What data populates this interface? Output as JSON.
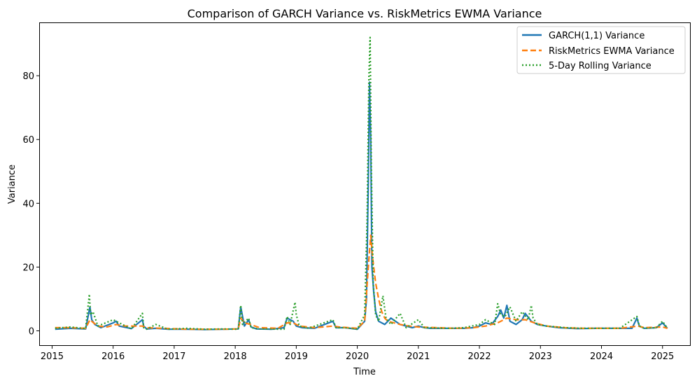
{
  "chart_data": {
    "type": "line",
    "title": "Comparison of GARCH Variance vs. RiskMetrics EWMA Variance",
    "xlabel": "Time",
    "ylabel": "Variance",
    "xlim": [
      2014.8,
      2025.45
    ],
    "ylim": [
      -4.5,
      96.5
    ],
    "x_ticks": [
      2015,
      2016,
      2017,
      2018,
      2019,
      2020,
      2021,
      2022,
      2023,
      2024,
      2025
    ],
    "y_ticks": [
      0,
      20,
      40,
      60,
      80
    ],
    "grid": false,
    "legend_position": "top-right",
    "series": [
      {
        "name": "GARCH(1,1) Variance",
        "color": "#1f77b4",
        "style": "solid",
        "x": [
          2015.05,
          2015.3,
          2015.55,
          2015.62,
          2015.65,
          2015.7,
          2015.8,
          2016.0,
          2016.05,
          2016.1,
          2016.3,
          2016.48,
          2016.5,
          2016.55,
          2016.7,
          2016.9,
          2017.2,
          2017.5,
          2017.8,
          2018.05,
          2018.09,
          2018.15,
          2018.22,
          2018.26,
          2018.35,
          2018.6,
          2018.8,
          2018.85,
          2018.95,
          2019.0,
          2019.1,
          2019.3,
          2019.6,
          2019.65,
          2019.8,
          2020.0,
          2020.12,
          2020.15,
          2020.18,
          2020.2,
          2020.22,
          2020.24,
          2020.27,
          2020.3,
          2020.35,
          2020.45,
          2020.55,
          2020.7,
          2020.8,
          2020.9,
          2021.0,
          2021.1,
          2021.2,
          2021.5,
          2021.75,
          2021.9,
          2022.0,
          2022.1,
          2022.2,
          2022.3,
          2022.35,
          2022.4,
          2022.45,
          2022.5,
          2022.6,
          2022.7,
          2022.75,
          2022.85,
          2022.95,
          2023.1,
          2023.3,
          2023.6,
          2023.9,
          2024.2,
          2024.5,
          2024.58,
          2024.62,
          2024.7,
          2024.9,
          2025.0,
          2025.08
        ],
        "y": [
          0.5,
          0.8,
          0.6,
          7.5,
          3.5,
          2.0,
          1.0,
          2.5,
          3.0,
          1.5,
          0.7,
          3.5,
          1.5,
          0.6,
          0.8,
          0.5,
          0.5,
          0.4,
          0.5,
          0.6,
          7.5,
          1.5,
          3.5,
          1.2,
          0.6,
          0.5,
          1.0,
          4.0,
          3.0,
          1.5,
          1.0,
          0.8,
          3.0,
          1.0,
          1.0,
          0.5,
          3.0,
          10.0,
          47.0,
          78.0,
          60.0,
          20.0,
          12.0,
          6.0,
          3.0,
          2.0,
          4.0,
          2.0,
          1.5,
          1.0,
          1.5,
          1.0,
          0.8,
          0.8,
          0.8,
          1.0,
          1.5,
          2.5,
          2.0,
          4.5,
          6.5,
          4.0,
          8.0,
          3.0,
          2.0,
          3.5,
          5.5,
          3.0,
          2.0,
          1.5,
          1.0,
          0.7,
          0.8,
          0.8,
          0.8,
          4.0,
          1.5,
          0.8,
          1.0,
          2.5,
          0.8
        ]
      },
      {
        "name": "RiskMetrics EWMA Variance",
        "color": "#ff7f0e",
        "style": "dashed",
        "x": [
          2015.05,
          2015.3,
          2015.55,
          2015.62,
          2015.68,
          2015.75,
          2015.9,
          2016.05,
          2016.2,
          2016.48,
          2016.55,
          2016.8,
          2017.2,
          2017.5,
          2017.8,
          2018.05,
          2018.09,
          2018.15,
          2018.25,
          2018.4,
          2018.7,
          2018.85,
          2018.95,
          2019.05,
          2019.3,
          2019.6,
          2019.7,
          2020.0,
          2020.12,
          2020.18,
          2020.22,
          2020.25,
          2020.3,
          2020.35,
          2020.4,
          2020.45,
          2020.5,
          2020.6,
          2020.7,
          2020.85,
          2021.0,
          2021.3,
          2021.6,
          2021.9,
          2022.1,
          2022.3,
          2022.45,
          2022.6,
          2022.75,
          2022.9,
          2023.1,
          2023.4,
          2023.7,
          2024.0,
          2024.3,
          2024.6,
          2024.7,
          2025.0,
          2025.08
        ],
        "y": [
          1.0,
          1.0,
          0.8,
          3.5,
          2.5,
          1.5,
          1.2,
          2.0,
          1.5,
          1.5,
          1.0,
          0.8,
          0.5,
          0.5,
          0.5,
          0.6,
          4.0,
          2.5,
          2.0,
          1.0,
          0.8,
          2.5,
          2.5,
          1.5,
          1.0,
          1.5,
          1.2,
          0.8,
          3.0,
          20.0,
          30.0,
          23.0,
          15.0,
          10.0,
          6.0,
          4.0,
          3.0,
          2.5,
          2.0,
          1.5,
          1.2,
          1.0,
          0.8,
          1.0,
          1.5,
          2.5,
          4.0,
          3.5,
          3.5,
          2.5,
          1.5,
          1.0,
          0.8,
          0.8,
          0.8,
          1.5,
          1.0,
          1.2,
          0.8
        ]
      },
      {
        "name": "5-Day Rolling Variance",
        "color": "#2ca02c",
        "style": "dotted",
        "x": [
          2015.05,
          2015.3,
          2015.55,
          2015.61,
          2015.63,
          2015.67,
          2015.75,
          2016.0,
          2016.1,
          2016.3,
          2016.48,
          2016.5,
          2016.55,
          2016.7,
          2016.9,
          2017.2,
          2017.5,
          2017.8,
          2018.05,
          2018.09,
          2018.12,
          2018.22,
          2018.26,
          2018.4,
          2018.8,
          2018.85,
          2018.9,
          2018.98,
          2019.0,
          2019.05,
          2019.2,
          2019.6,
          2019.65,
          2019.8,
          2020.0,
          2020.12,
          2020.16,
          2020.19,
          2020.21,
          2020.23,
          2020.26,
          2020.3,
          2020.35,
          2020.42,
          2020.47,
          2020.55,
          2020.7,
          2020.8,
          2021.0,
          2021.1,
          2021.5,
          2021.75,
          2022.0,
          2022.1,
          2022.25,
          2022.3,
          2022.35,
          2022.42,
          2022.5,
          2022.6,
          2022.7,
          2022.8,
          2022.85,
          2022.88,
          2022.95,
          2023.1,
          2023.4,
          2023.7,
          2024.0,
          2024.3,
          2024.58,
          2024.62,
          2024.7,
          2024.9,
          2025.0,
          2025.08
        ],
        "y": [
          0.8,
          1.2,
          0.7,
          11.5,
          5.0,
          6.0,
          1.5,
          3.5,
          2.5,
          0.6,
          5.5,
          1.0,
          0.5,
          2.0,
          0.5,
          0.8,
          0.5,
          0.6,
          0.5,
          8.0,
          2.0,
          4.0,
          1.0,
          0.6,
          0.5,
          4.5,
          2.0,
          9.0,
          5.0,
          1.5,
          0.8,
          3.5,
          1.0,
          1.0,
          0.5,
          5.0,
          35.0,
          80.0,
          92.0,
          50.0,
          15.0,
          5.0,
          3.0,
          11.0,
          4.0,
          2.0,
          5.5,
          1.0,
          3.5,
          1.0,
          0.8,
          1.0,
          2.0,
          3.5,
          2.0,
          8.5,
          5.0,
          4.5,
          7.5,
          3.0,
          6.0,
          3.5,
          8.0,
          4.0,
          2.0,
          1.5,
          1.0,
          0.8,
          0.8,
          0.8,
          4.5,
          1.5,
          0.8,
          1.0,
          3.0,
          0.8
        ]
      }
    ]
  }
}
